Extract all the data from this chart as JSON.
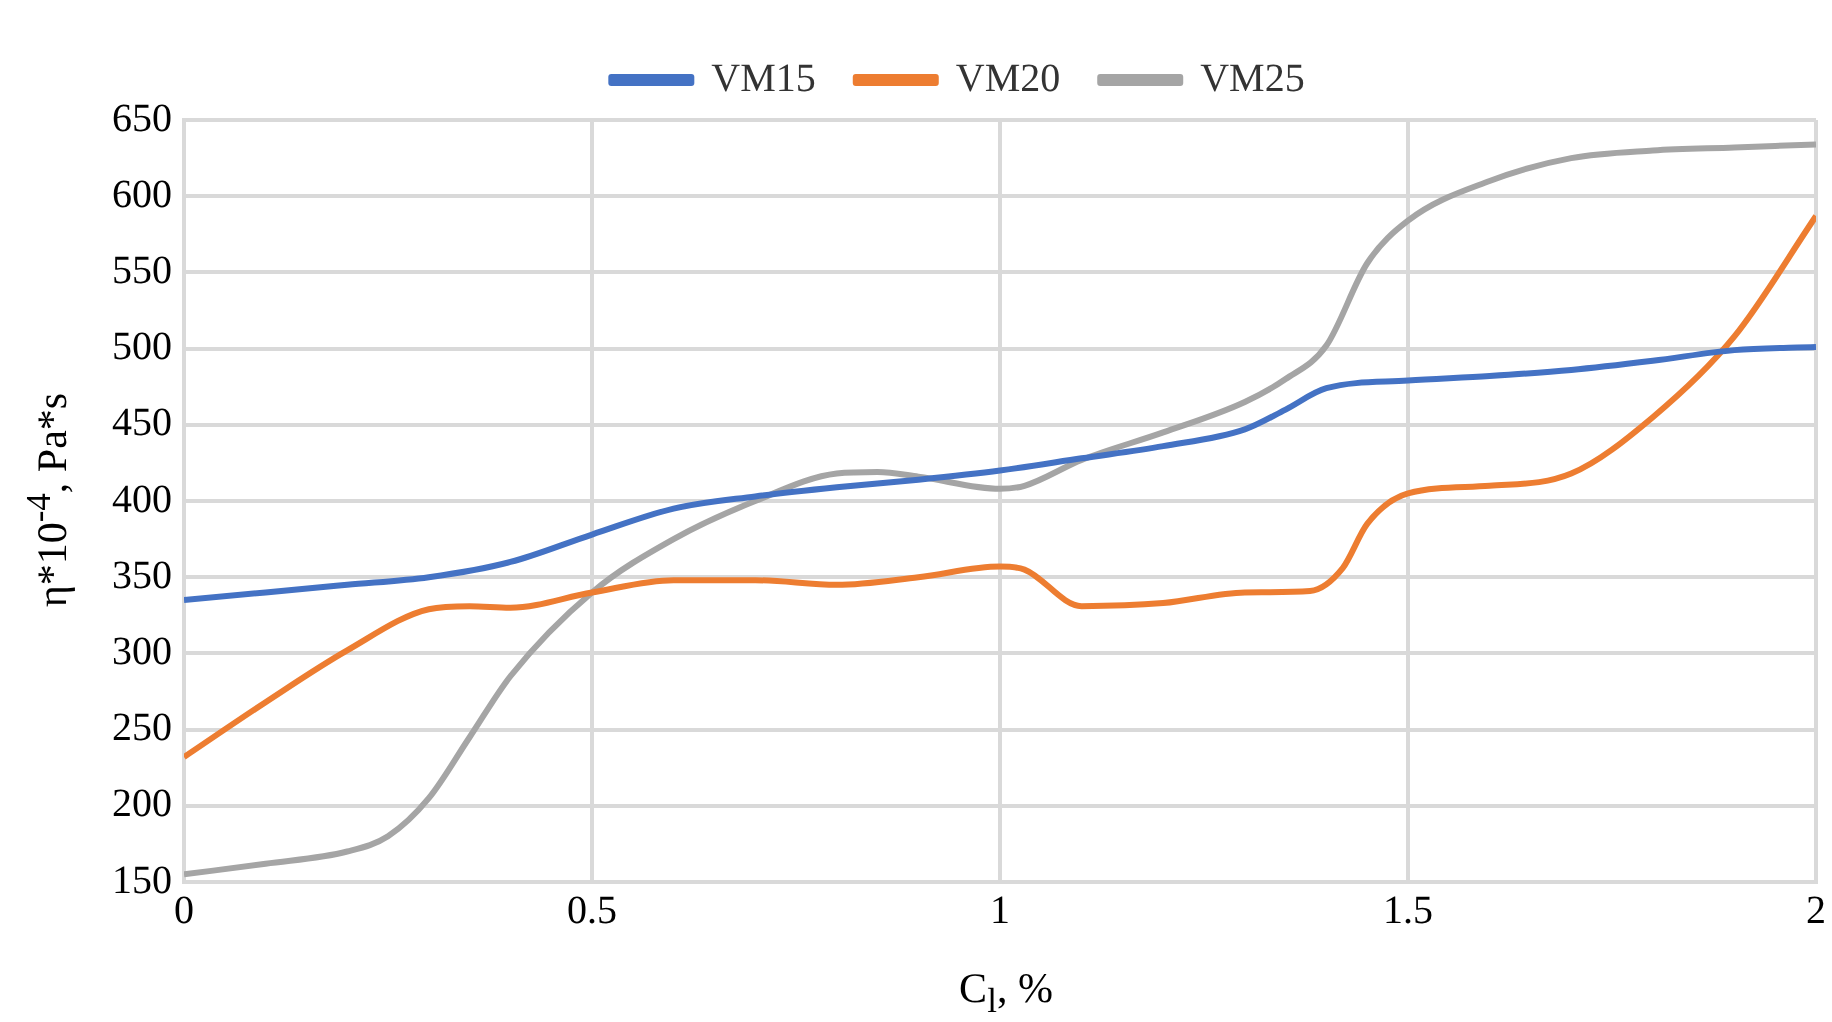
{
  "chart_data": {
    "type": "line",
    "xlabel": "C$_{l}$, %",
    "ylabel": "η*10$^{-4}$, Pa*s",
    "xlim": [
      0,
      2
    ],
    "xticks": [
      0,
      0.5,
      1,
      1.5,
      2
    ],
    "ylim": [
      150,
      650
    ],
    "yticks": [
      150,
      200,
      250,
      300,
      350,
      400,
      450,
      500,
      550,
      600,
      650
    ],
    "grid": true,
    "legend": "top",
    "marker": "none",
    "line_style": "solid",
    "series": [
      {
        "name": "VM15",
        "color": "#4472c4",
        "x": [
          0,
          0.1,
          0.2,
          0.3,
          0.4,
          0.5,
          0.6,
          0.7,
          0.8,
          0.9,
          1.0,
          1.1,
          1.2,
          1.3,
          1.35,
          1.4,
          1.5,
          1.6,
          1.7,
          1.8,
          1.9,
          2.0
        ],
        "values": [
          335,
          340,
          345,
          350,
          360,
          378,
          395,
          403,
          409,
          414,
          420,
          428,
          436,
          447,
          460,
          474,
          479,
          482,
          486,
          492,
          499,
          501
        ]
      },
      {
        "name": "VM20",
        "color": "#ed7d31",
        "x": [
          0,
          0.1,
          0.2,
          0.3,
          0.35,
          0.4,
          0.5,
          0.6,
          0.7,
          0.8,
          0.9,
          1.0,
          1.03,
          1.1,
          1.2,
          1.3,
          1.38,
          1.42,
          1.45,
          1.5,
          1.6,
          1.7,
          1.8,
          1.9,
          2.0
        ],
        "values": [
          232,
          268,
          302,
          329,
          331,
          330,
          340,
          348,
          348,
          345,
          350,
          357,
          355,
          331,
          333,
          340,
          341,
          356,
          385,
          405,
          410,
          418,
          455,
          508,
          587
        ]
      },
      {
        "name": "VM25",
        "color": "#a5a5a5",
        "x": [
          0,
          0.1,
          0.2,
          0.25,
          0.3,
          0.35,
          0.4,
          0.5,
          0.6,
          0.7,
          0.8,
          0.85,
          0.9,
          1.0,
          1.03,
          1.1,
          1.2,
          1.3,
          1.35,
          1.4,
          1.45,
          1.5,
          1.6,
          1.7,
          1.8,
          1.9,
          2.0
        ],
        "values": [
          155,
          162,
          170,
          180,
          205,
          245,
          285,
          340,
          375,
          400,
          418,
          419,
          416,
          408,
          410,
          427,
          445,
          465,
          480,
          502,
          556,
          584,
          610,
          625,
          630,
          632,
          634
        ]
      }
    ]
  }
}
